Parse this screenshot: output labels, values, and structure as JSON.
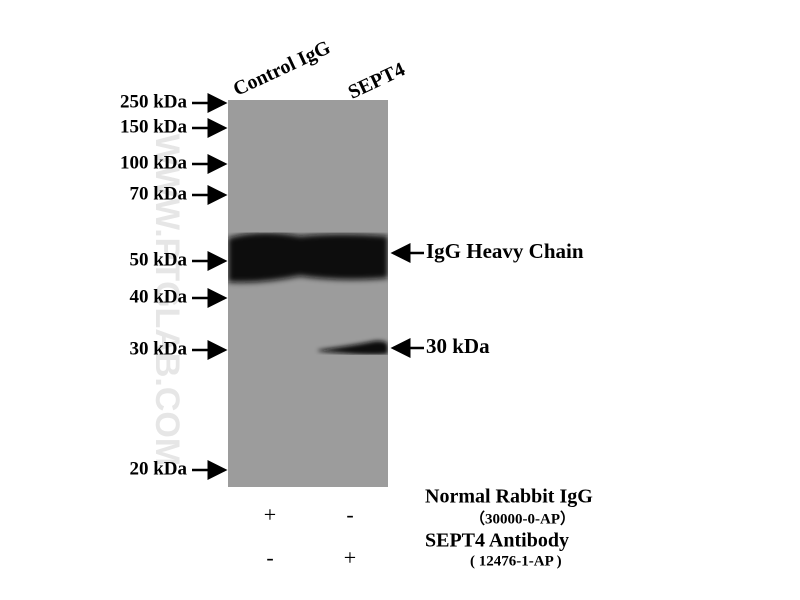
{
  "lanes": [
    "Control IgG",
    "SEPT4"
  ],
  "markers": [
    "250 kDa",
    "150 kDa",
    "100 kDa",
    "70 kDa",
    "50 kDa",
    "40 kDa",
    "30 kDa",
    "20 kDa"
  ],
  "annotations": [
    "IgG Heavy Chain",
    "30 kDa"
  ],
  "conditions": [
    {
      "name": "Normal Rabbit IgG",
      "catalog": "（30000-0-AP）",
      "signs": [
        "+",
        "-"
      ]
    },
    {
      "name": "SEPT4 Antibody",
      "catalog": "( 12476-1-AP )",
      "signs": [
        "-",
        "+"
      ]
    }
  ],
  "watermark": "WWW.PTGLAB.COM"
}
